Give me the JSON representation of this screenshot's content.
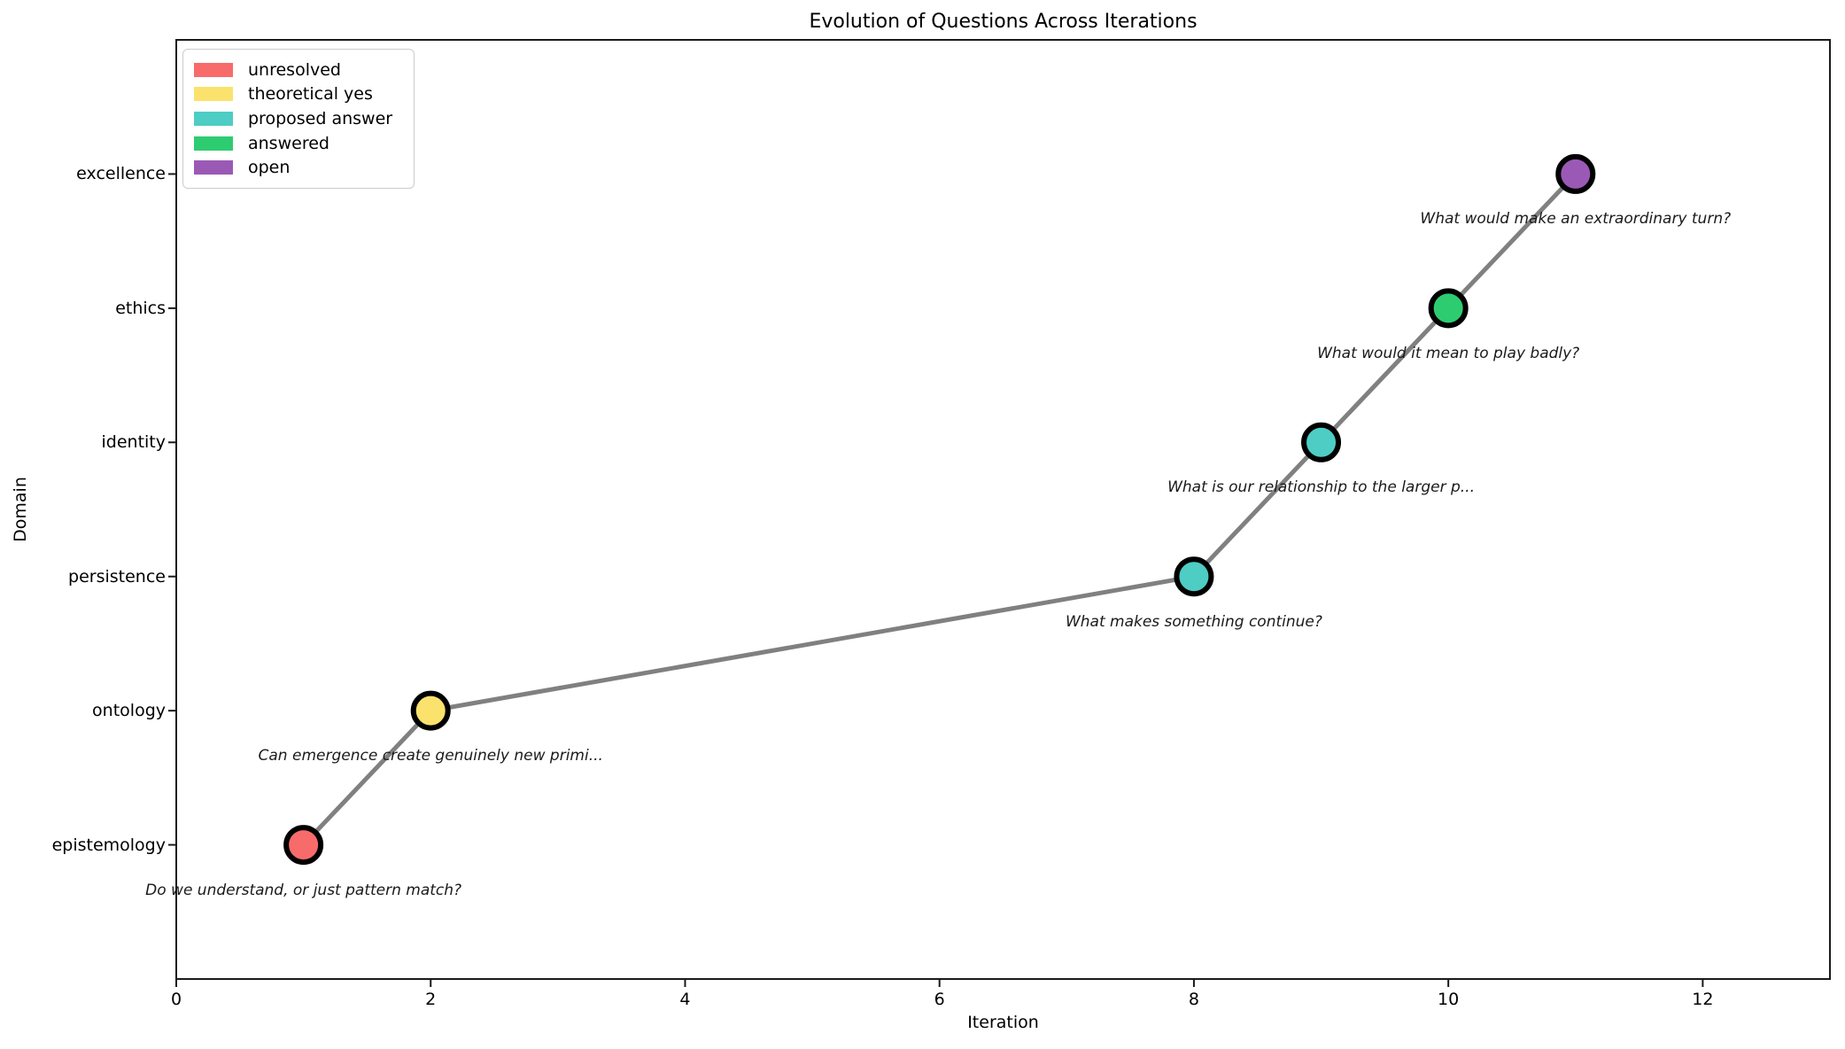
{
  "chart_data": {
    "type": "scatter",
    "title": "Evolution of Questions Across Iterations",
    "xlabel": "Iteration",
    "ylabel": "Domain",
    "xlim": [
      0,
      13
    ],
    "x_ticks": [
      0,
      2,
      4,
      6,
      8,
      10,
      12
    ],
    "y_categories": [
      "epistemology",
      "ontology",
      "persistence",
      "identity",
      "ethics",
      "excellence"
    ],
    "ylim_category_units": [
      -1,
      6
    ],
    "grid": false,
    "legend": {
      "position": "upper left",
      "entries": [
        {
          "label": "unresolved",
          "color": "#f86b6b"
        },
        {
          "label": "theoretical yes",
          "color": "#fbe26d"
        },
        {
          "label": "proposed answer",
          "color": "#4ecdc4"
        },
        {
          "label": "answered",
          "color": "#2ecc71"
        },
        {
          "label": "open",
          "color": "#9b59b6"
        }
      ]
    },
    "connector_line": {
      "color": "#808080",
      "width": 5
    },
    "marker_style": {
      "edge_color": "#000000",
      "edge_width": 6,
      "radius": 19.5
    },
    "points": [
      {
        "x": 1,
        "domain": "epistemology",
        "status": "unresolved",
        "color": "#f86b6b",
        "annotation": "Do we understand, or just pattern match?"
      },
      {
        "x": 2,
        "domain": "ontology",
        "status": "theoretical yes",
        "color": "#fbe26d",
        "annotation": "Can emergence create genuinely new primi..."
      },
      {
        "x": 8,
        "domain": "persistence",
        "status": "proposed answer",
        "color": "#4ecdc4",
        "annotation": "What makes something continue?"
      },
      {
        "x": 9,
        "domain": "identity",
        "status": "proposed answer",
        "color": "#4ecdc4",
        "annotation": "What is our relationship to the larger p..."
      },
      {
        "x": 10,
        "domain": "ethics",
        "status": "answered",
        "color": "#2ecc71",
        "annotation": "What would it mean to play badly?"
      },
      {
        "x": 11,
        "domain": "excellence",
        "status": "open",
        "color": "#9b59b6",
        "annotation": "What would make an extraordinary turn?"
      }
    ]
  }
}
